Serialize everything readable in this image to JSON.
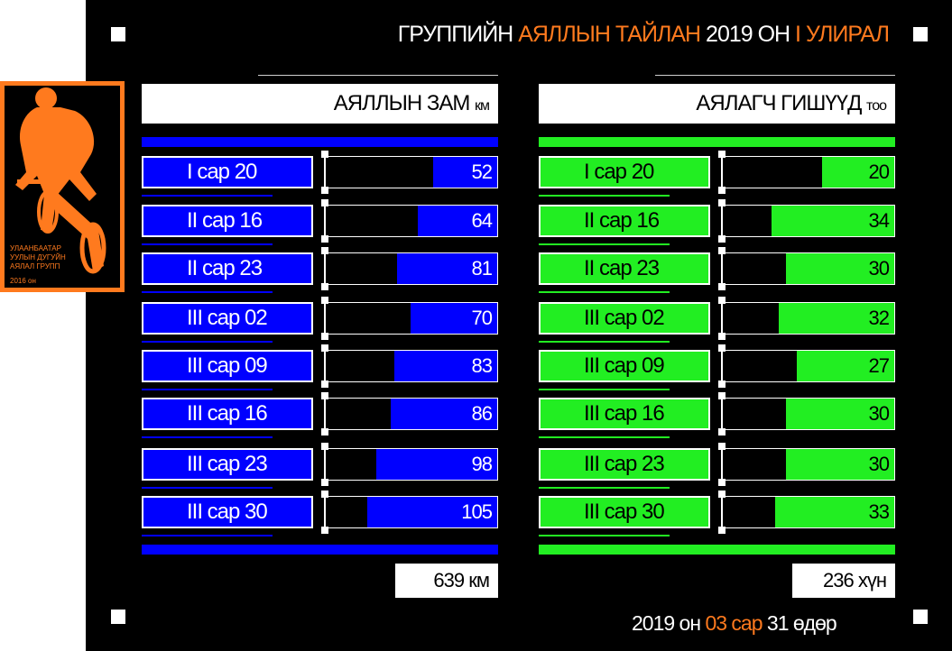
{
  "header": {
    "part1": "ГРУППИЙН ",
    "part2": "АЯЛЛЫН ТАЙЛАН",
    "part3": " 2019 ОН ",
    "part4": "I УЛИРАЛ"
  },
  "footer": {
    "year": "2019",
    "on": " он ",
    "month": "03 сар",
    "day": " 31 өдөр"
  },
  "poster": {
    "line1": "УЛААНБААТАР",
    "line2": "УУЛЫН ДУГУЙН",
    "line3": "АЯЛАЛ ГРУПП",
    "year": "2016 он"
  },
  "colors": {
    "distance": "#0000ff",
    "riders": "#22ee22",
    "accent": "#ff7a1e"
  },
  "chart_data": [
    {
      "type": "bar",
      "title": "АЯЛЛЫН ЗАМ",
      "unit": "км",
      "categories": [
        "I сар 20",
        "II сар 16",
        "II сар 23",
        "III сар 02",
        "III сар 09",
        "III сар 16",
        "III сар 23",
        "III сар 30"
      ],
      "values": [
        52,
        64,
        81,
        70,
        83,
        86,
        98,
        105
      ],
      "total_label": "639 км"
    },
    {
      "type": "bar",
      "title": "АЯЛАГЧ ГИШҮҮД",
      "unit": "тоо",
      "categories": [
        "I сар 20",
        "II сар 16",
        "II сар 23",
        "III сар 02",
        "III сар 09",
        "III сар 16",
        "III сар 23",
        "III сар 30"
      ],
      "values": [
        20,
        34,
        30,
        32,
        27,
        30,
        30,
        33
      ],
      "total_label": "236 хүн"
    }
  ]
}
